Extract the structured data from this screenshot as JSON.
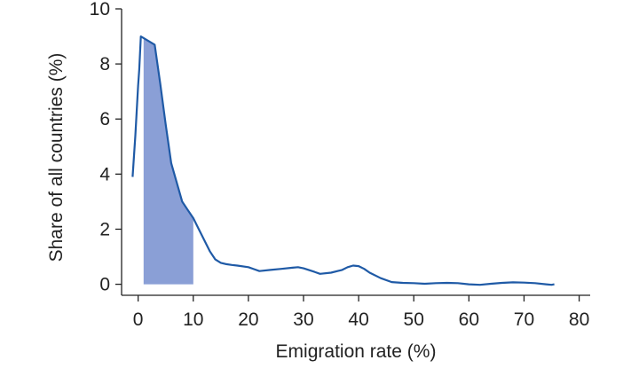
{
  "chart_data": {
    "type": "area",
    "title": "",
    "xlabel": "Emigration rate (%)",
    "ylabel": "Share of all countries (%)",
    "xlim": [
      -3,
      82
    ],
    "ylim": [
      -0.4,
      10
    ],
    "xticks": [
      "0",
      "10",
      "20",
      "30",
      "40",
      "50",
      "60",
      "70",
      "80"
    ],
    "yticks": [
      "0",
      "2",
      "4",
      "6",
      "8",
      "10"
    ],
    "grid": false,
    "legend": "none",
    "series": [
      {
        "color": "#1f5aa6",
        "x": [
          -1,
          -0.5,
          0,
          0.2,
          0.5,
          3,
          4,
          5,
          6,
          7,
          8,
          9,
          10,
          11,
          12,
          13,
          14,
          15,
          16,
          17,
          18,
          20,
          21,
          22,
          24,
          26,
          28,
          29,
          30,
          32,
          33,
          35,
          37,
          38,
          39,
          40,
          41,
          42,
          44,
          46,
          48,
          50,
          52,
          54,
          56,
          58,
          60,
          62,
          64,
          66,
          68,
          70,
          72,
          74,
          75,
          75.5
        ],
        "y": [
          3.9,
          5.4,
          7.2,
          7.8,
          9.0,
          8.7,
          7.3,
          5.8,
          4.4,
          3.7,
          3.0,
          2.7,
          2.4,
          2.0,
          1.6,
          1.2,
          0.9,
          0.78,
          0.73,
          0.7,
          0.68,
          0.62,
          0.55,
          0.48,
          0.52,
          0.56,
          0.6,
          0.62,
          0.58,
          0.45,
          0.38,
          0.42,
          0.52,
          0.62,
          0.68,
          0.66,
          0.56,
          0.42,
          0.22,
          0.08,
          0.05,
          0.04,
          0.02,
          0.04,
          0.05,
          0.04,
          0.0,
          -0.02,
          0.02,
          0.05,
          0.07,
          0.06,
          0.04,
          0.0,
          -0.02,
          0.0
        ]
      }
    ],
    "shaded_region": {
      "x_from": 1,
      "x_to": 10,
      "color": "#8a9fd6"
    }
  }
}
